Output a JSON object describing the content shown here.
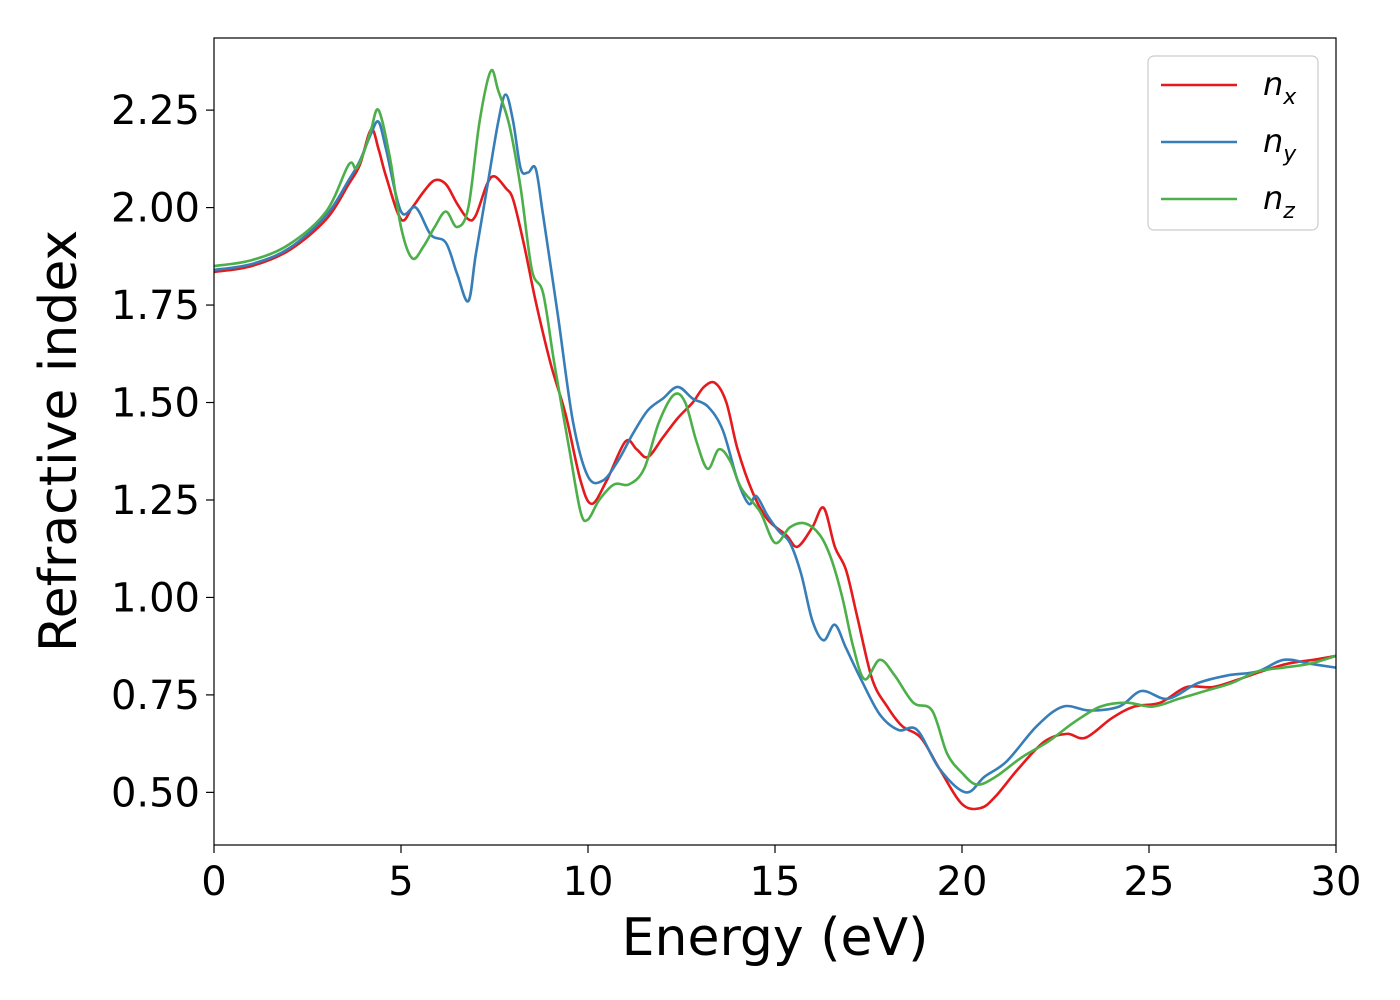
{
  "chart_data": {
    "type": "line",
    "xlabel": "Energy (eV)",
    "ylabel": "Refractive index",
    "xlim": [
      0,
      30
    ],
    "ylim": [
      0.365,
      2.435
    ],
    "xticks": [
      0,
      5,
      10,
      15,
      20,
      25,
      30
    ],
    "xtick_labels": [
      "0",
      "5",
      "10",
      "15",
      "20",
      "25",
      "30"
    ],
    "yticks": [
      0.5,
      0.75,
      1.0,
      1.25,
      1.5,
      1.75,
      2.0,
      2.25
    ],
    "ytick_labels": [
      "0.50",
      "0.75",
      "1.00",
      "1.25",
      "1.50",
      "1.75",
      "2.00",
      "2.25"
    ],
    "grid": false,
    "legend_position": "top-right",
    "series": [
      {
        "name": "n_x",
        "label_main": "n",
        "label_sub": "x",
        "color": "#e41a1c",
        "x": [
          0,
          1,
          2,
          3,
          3.6,
          3.9,
          4.2,
          4.4,
          4.6,
          5.0,
          5.3,
          5.6,
          5.9,
          6.2,
          6.5,
          6.8,
          7.0,
          7.3,
          7.5,
          7.8,
          8.0,
          8.3,
          8.6,
          9.0,
          9.4,
          9.8,
          10.1,
          10.5,
          11.0,
          11.3,
          11.6,
          12.0,
          12.4,
          12.8,
          13.1,
          13.4,
          13.7,
          14.0,
          14.4,
          14.8,
          15.3,
          15.6,
          16.0,
          16.3,
          16.6,
          16.9,
          17.2,
          17.6,
          18.0,
          18.4,
          18.9,
          19.4,
          20.0,
          20.5,
          20.9,
          21.5,
          22.2,
          22.8,
          23.3,
          24.0,
          24.6,
          25.3,
          26.0,
          26.7,
          27.4,
          28.0,
          28.7,
          29.4,
          30
        ],
        "y": [
          1.835,
          1.85,
          1.89,
          1.97,
          2.06,
          2.11,
          2.2,
          2.15,
          2.08,
          1.97,
          2.0,
          2.04,
          2.07,
          2.06,
          2.01,
          1.97,
          1.98,
          2.06,
          2.08,
          2.05,
          2.02,
          1.9,
          1.76,
          1.6,
          1.47,
          1.3,
          1.24,
          1.3,
          1.4,
          1.38,
          1.36,
          1.41,
          1.46,
          1.5,
          1.54,
          1.55,
          1.5,
          1.38,
          1.27,
          1.2,
          1.16,
          1.13,
          1.18,
          1.23,
          1.13,
          1.07,
          0.95,
          0.79,
          0.72,
          0.67,
          0.64,
          0.56,
          0.47,
          0.46,
          0.49,
          0.56,
          0.63,
          0.65,
          0.64,
          0.69,
          0.72,
          0.73,
          0.77,
          0.77,
          0.79,
          0.81,
          0.83,
          0.84,
          0.85
        ]
      },
      {
        "name": "n_y",
        "label_main": "n",
        "label_sub": "y",
        "color": "#377eb8",
        "x": [
          0,
          1,
          2,
          3,
          3.6,
          3.9,
          4.2,
          4.4,
          4.6,
          5.0,
          5.4,
          5.8,
          6.2,
          6.5,
          6.8,
          7.0,
          7.3,
          7.6,
          7.8,
          8.0,
          8.2,
          8.4,
          8.6,
          8.8,
          9.2,
          9.6,
          10.0,
          10.4,
          10.8,
          11.2,
          11.6,
          12.0,
          12.4,
          12.8,
          13.2,
          13.6,
          14.0,
          14.3,
          14.5,
          14.8,
          15.1,
          15.4,
          15.7,
          16.0,
          16.3,
          16.6,
          16.9,
          17.3,
          17.8,
          18.3,
          18.8,
          19.4,
          20.1,
          20.6,
          21.2,
          22.0,
          22.7,
          23.4,
          24.2,
          24.8,
          25.5,
          26.3,
          27.1,
          27.9,
          28.6,
          29.3,
          30
        ],
        "y": [
          1.84,
          1.855,
          1.895,
          1.98,
          2.07,
          2.12,
          2.19,
          2.22,
          2.15,
          1.99,
          2.0,
          1.93,
          1.91,
          1.83,
          1.76,
          1.88,
          2.05,
          2.22,
          2.29,
          2.22,
          2.1,
          2.09,
          2.1,
          1.98,
          1.72,
          1.45,
          1.31,
          1.3,
          1.35,
          1.42,
          1.48,
          1.51,
          1.54,
          1.51,
          1.49,
          1.43,
          1.3,
          1.24,
          1.26,
          1.21,
          1.17,
          1.14,
          1.06,
          0.94,
          0.89,
          0.93,
          0.87,
          0.79,
          0.7,
          0.66,
          0.66,
          0.56,
          0.5,
          0.54,
          0.58,
          0.67,
          0.72,
          0.71,
          0.72,
          0.76,
          0.74,
          0.78,
          0.8,
          0.81,
          0.84,
          0.83,
          0.82
        ]
      },
      {
        "name": "n_z",
        "label_main": "n",
        "label_sub": "z",
        "color": "#4daf4a",
        "x": [
          0,
          1,
          2,
          3,
          3.6,
          3.8,
          4.0,
          4.2,
          4.4,
          4.7,
          5.0,
          5.3,
          5.6,
          5.9,
          6.2,
          6.5,
          6.8,
          7.1,
          7.4,
          7.6,
          7.9,
          8.2,
          8.5,
          8.8,
          9.1,
          9.5,
          9.8,
          10.0,
          10.3,
          10.7,
          11.1,
          11.5,
          11.9,
          12.3,
          12.6,
          12.9,
          13.2,
          13.5,
          13.8,
          14.1,
          14.6,
          15.0,
          15.4,
          15.8,
          16.2,
          16.5,
          16.8,
          17.1,
          17.4,
          17.8,
          18.2,
          18.7,
          19.2,
          19.6,
          20.0,
          20.4,
          20.9,
          21.6,
          22.3,
          23.0,
          23.7,
          24.4,
          25.1,
          25.8,
          26.5,
          27.2,
          27.9,
          28.6,
          29.3,
          30
        ],
        "y": [
          1.85,
          1.865,
          1.905,
          1.99,
          2.11,
          2.1,
          2.14,
          2.2,
          2.25,
          2.13,
          1.95,
          1.87,
          1.9,
          1.95,
          1.99,
          1.95,
          2.0,
          2.22,
          2.35,
          2.3,
          2.21,
          2.05,
          1.84,
          1.78,
          1.6,
          1.38,
          1.22,
          1.2,
          1.25,
          1.29,
          1.29,
          1.33,
          1.45,
          1.52,
          1.5,
          1.4,
          1.33,
          1.38,
          1.35,
          1.28,
          1.22,
          1.14,
          1.18,
          1.19,
          1.16,
          1.1,
          1.0,
          0.87,
          0.79,
          0.84,
          0.8,
          0.73,
          0.71,
          0.6,
          0.55,
          0.52,
          0.54,
          0.59,
          0.63,
          0.68,
          0.72,
          0.73,
          0.72,
          0.74,
          0.76,
          0.78,
          0.81,
          0.82,
          0.83,
          0.85
        ]
      }
    ]
  }
}
